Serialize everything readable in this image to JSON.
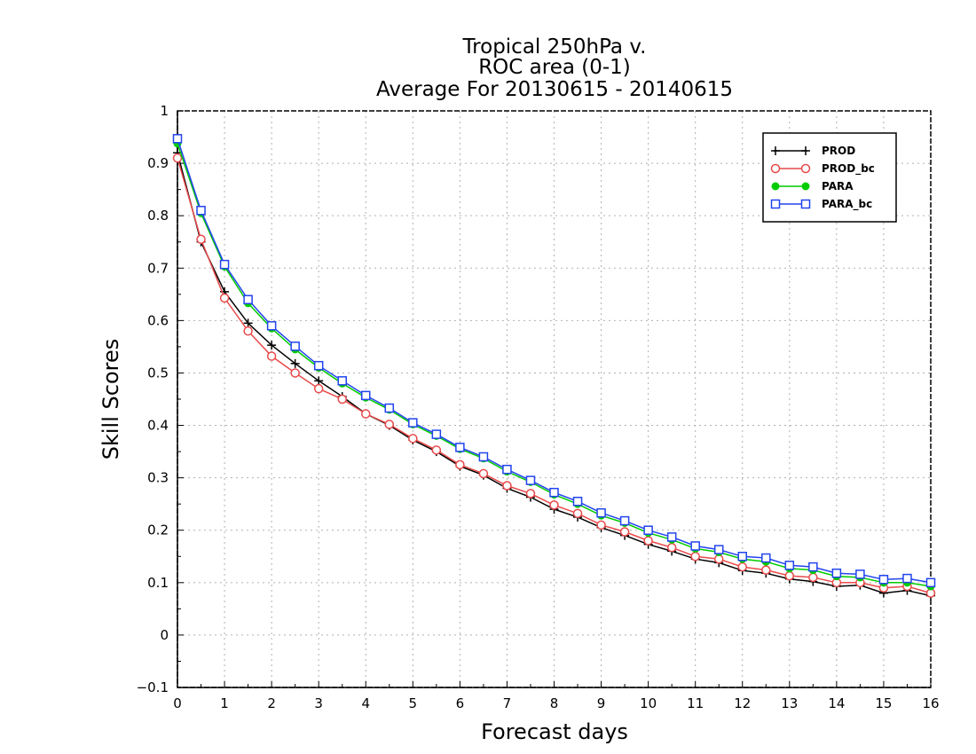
{
  "chart_data": {
    "type": "line",
    "title_lines": [
      "Tropical 250hPa v.",
      "ROC area (0-1)",
      "Average For 20130615 - 20140615"
    ],
    "xlabel": "Forecast days",
    "ylabel": "Skill Scores",
    "xlim": [
      0,
      16
    ],
    "ylim": [
      -0.1,
      1
    ],
    "x_ticks": [
      0,
      1,
      2,
      3,
      4,
      5,
      6,
      7,
      8,
      9,
      10,
      11,
      12,
      13,
      14,
      15,
      16
    ],
    "y_ticks": [
      -0.1,
      0,
      0.1,
      0.2,
      0.3,
      0.4,
      0.5,
      0.6,
      0.7,
      0.8,
      0.9,
      1
    ],
    "grid": true,
    "legend_position": "top-right",
    "x": [
      0,
      0.5,
      1,
      1.5,
      2,
      2.5,
      3,
      3.5,
      4,
      4.5,
      5,
      5.5,
      6,
      6.5,
      7,
      7.5,
      8,
      8.5,
      9,
      9.5,
      10,
      10.5,
      11,
      11.5,
      12,
      12.5,
      13,
      13.5,
      14,
      14.5,
      15,
      15.5,
      16
    ],
    "series": [
      {
        "name": "PROD",
        "color": "#000000",
        "marker": "plus",
        "values": [
          0.92,
          0.75,
          0.655,
          0.595,
          0.553,
          0.518,
          0.485,
          0.455,
          0.422,
          0.4,
          0.372,
          0.35,
          0.322,
          0.305,
          0.28,
          0.263,
          0.24,
          0.225,
          0.205,
          0.19,
          0.173,
          0.16,
          0.145,
          0.138,
          0.123,
          0.118,
          0.107,
          0.102,
          0.093,
          0.095,
          0.08,
          0.085,
          0.075
        ]
      },
      {
        "name": "PROD_bc",
        "color": "#e84a4a",
        "marker": "circle",
        "values": [
          0.91,
          0.755,
          0.643,
          0.58,
          0.532,
          0.5,
          0.47,
          0.45,
          0.422,
          0.402,
          0.375,
          0.353,
          0.325,
          0.308,
          0.285,
          0.27,
          0.248,
          0.232,
          0.21,
          0.197,
          0.18,
          0.167,
          0.15,
          0.145,
          0.13,
          0.124,
          0.113,
          0.11,
          0.1,
          0.1,
          0.09,
          0.093,
          0.08
        ]
      },
      {
        "name": "PARA",
        "color": "#00cc00",
        "marker": "dot",
        "values": [
          0.938,
          0.805,
          0.703,
          0.633,
          0.585,
          0.545,
          0.51,
          0.48,
          0.453,
          0.43,
          0.402,
          0.38,
          0.355,
          0.337,
          0.312,
          0.292,
          0.268,
          0.25,
          0.228,
          0.214,
          0.195,
          0.182,
          0.165,
          0.158,
          0.145,
          0.14,
          0.127,
          0.124,
          0.112,
          0.11,
          0.1,
          0.1,
          0.093
        ]
      },
      {
        "name": "PARA_bc",
        "color": "#2244ee",
        "marker": "square",
        "values": [
          0.947,
          0.81,
          0.707,
          0.64,
          0.59,
          0.551,
          0.514,
          0.485,
          0.457,
          0.433,
          0.405,
          0.383,
          0.358,
          0.34,
          0.316,
          0.295,
          0.272,
          0.255,
          0.233,
          0.218,
          0.2,
          0.187,
          0.17,
          0.163,
          0.15,
          0.147,
          0.133,
          0.13,
          0.118,
          0.116,
          0.106,
          0.108,
          0.1
        ]
      }
    ]
  }
}
